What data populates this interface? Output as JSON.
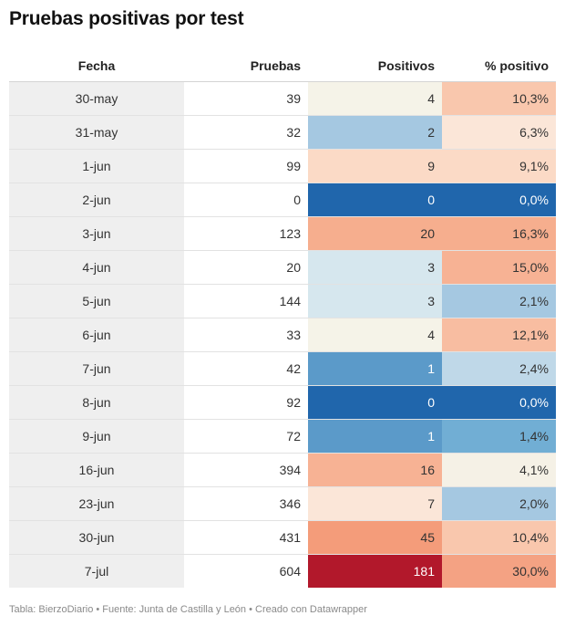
{
  "title": "Pruebas positivas por test",
  "footer": "Tabla: BierzoDiario • Fuente: Junta de Castilla y León • Creado con Datawrapper",
  "columns": {
    "fecha": "Fecha",
    "pruebas": "Pruebas",
    "positivos": "Positivos",
    "pct": "% positivo"
  },
  "rows": [
    {
      "fecha": "30-may",
      "pruebas": "39",
      "positivos": "4",
      "pct": "10,3%",
      "pos_color": "#f5f3e8",
      "pct_color": "#f9c7ad"
    },
    {
      "fecha": "31-may",
      "pruebas": "32",
      "positivos": "2",
      "pct": "6,3%",
      "pos_color": "#a5c8e1",
      "pct_color": "#fbe6d8"
    },
    {
      "fecha": "1-jun",
      "pruebas": "99",
      "positivos": "9",
      "pct": "9,1%",
      "pos_color": "#fbdac6",
      "pct_color": "#fbdac6"
    },
    {
      "fecha": "2-jun",
      "pruebas": "0",
      "positivos": "0",
      "pct": "0,0%",
      "pos_color": "#2066ac",
      "pct_color": "#2066ac"
    },
    {
      "fecha": "3-jun",
      "pruebas": "123",
      "positivos": "20",
      "pct": "16,3%",
      "pos_color": "#f6ae8e",
      "pct_color": "#f6ae8e"
    },
    {
      "fecha": "4-jun",
      "pruebas": "20",
      "positivos": "3",
      "pct": "15,0%",
      "pos_color": "#d6e7ee",
      "pct_color": "#f7b294"
    },
    {
      "fecha": "5-jun",
      "pruebas": "144",
      "positivos": "3",
      "pct": "2,1%",
      "pos_color": "#d6e7ee",
      "pct_color": "#a5c8e1"
    },
    {
      "fecha": "6-jun",
      "pruebas": "33",
      "positivos": "4",
      "pct": "12,1%",
      "pos_color": "#f5f3e8",
      "pct_color": "#f8bda1"
    },
    {
      "fecha": "7-jun",
      "pruebas": "42",
      "positivos": "1",
      "pct": "2,4%",
      "pos_color": "#5b9ac9",
      "pct_color": "#bfd8e8"
    },
    {
      "fecha": "8-jun",
      "pruebas": "92",
      "positivos": "0",
      "pct": "0,0%",
      "pos_color": "#2066ac",
      "pct_color": "#2066ac"
    },
    {
      "fecha": "9-jun",
      "pruebas": "72",
      "positivos": "1",
      "pct": "1,4%",
      "pos_color": "#5b9ac9",
      "pct_color": "#71aed4"
    },
    {
      "fecha": "16-jun",
      "pruebas": "394",
      "positivos": "16",
      "pct": "4,1%",
      "pos_color": "#f7b294",
      "pct_color": "#f5f1e6"
    },
    {
      "fecha": "23-jun",
      "pruebas": "346",
      "positivos": "7",
      "pct": "2,0%",
      "pos_color": "#fbe6d8",
      "pct_color": "#a5c8e1"
    },
    {
      "fecha": "30-jun",
      "pruebas": "431",
      "positivos": "45",
      "pct": "10,4%",
      "pos_color": "#f49c7a",
      "pct_color": "#f9c7ad"
    },
    {
      "fecha": "7-jul",
      "pruebas": "604",
      "positivos": "181",
      "pct": "30,0%",
      "pos_color": "#b2182b",
      "pct_color": "#f4a283"
    }
  ]
}
